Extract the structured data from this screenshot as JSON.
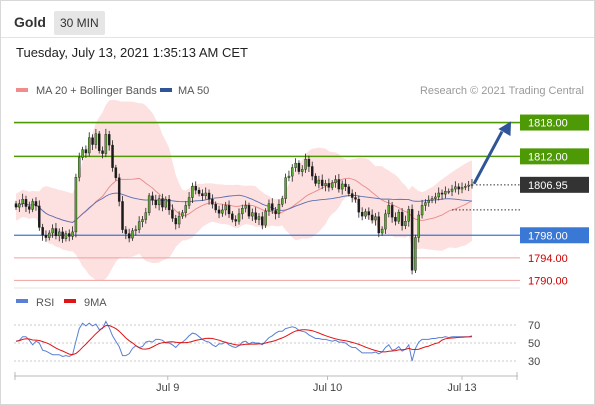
{
  "header": {
    "title": "Gold",
    "interval": "30 MIN",
    "datetime": "Tuesday, July 13, 2021 1:35:13 AM CET"
  },
  "chart_data": [
    {
      "type": "candlestick",
      "instrument": "Gold",
      "interval": "30 MIN",
      "credit": "Research © 2021 Trading Central",
      "legend": [
        {
          "name": "MA 20 + Bollinger Bands",
          "color": "#f28b8b"
        },
        {
          "name": "MA 50",
          "color": "#2f5597"
        }
      ],
      "x_ticks": [
        "Jul 9",
        "Jul 10",
        "Jul 13"
      ],
      "ylim": [
        1789,
        1822
      ],
      "last_price": 1806.95,
      "levels": [
        {
          "value": 1818.0,
          "label": "1818.00",
          "kind": "resistance",
          "color": "#4e9a06"
        },
        {
          "value": 1812.0,
          "label": "1812.00",
          "kind": "resistance",
          "color": "#4e9a06"
        },
        {
          "value": 1798.0,
          "label": "1798.00",
          "kind": "pivot",
          "color": "#3a78d6"
        },
        {
          "value": 1794.0,
          "label": "1794.00",
          "kind": "support",
          "color": "#cc0000"
        },
        {
          "value": 1790.0,
          "label": "1790.00",
          "kind": "support",
          "color": "#cc0000"
        }
      ],
      "forecast_arrow": {
        "from": 1806.95,
        "to": 1818.0,
        "color": "#2f5597"
      },
      "closes": [
        1803.0,
        1803.6,
        1804.4,
        1803.1,
        1802.6,
        1804.0,
        1803.2,
        1799.4,
        1798.0,
        1797.6,
        1798.4,
        1799.2,
        1797.9,
        1798.6,
        1797.4,
        1798.3,
        1797.8,
        1798.6,
        1808.3,
        1811.8,
        1813.2,
        1812.6,
        1815.3,
        1814.1,
        1816.0,
        1813.0,
        1812.5,
        1815.9,
        1814.0,
        1810.0,
        1808.2,
        1804.0,
        1799.0,
        1798.3,
        1797.5,
        1798.8,
        1799.0,
        1800.4,
        1800.8,
        1802.0,
        1805.0,
        1804.2,
        1803.4,
        1804.5,
        1803.0,
        1804.4,
        1802.5,
        1801.0,
        1800.0,
        1801.4,
        1802.0,
        1803.3,
        1804.7,
        1806.7,
        1806.0,
        1805.4,
        1805.0,
        1805.5,
        1804.4,
        1803.5,
        1802.5,
        1801.9,
        1802.5,
        1803.3,
        1801.8,
        1800.8,
        1800.5,
        1801.8,
        1802.8,
        1803.3,
        1801.4,
        1802.0,
        1800.8,
        1801.3,
        1799.8,
        1802.3,
        1803.6,
        1802.4,
        1801.8,
        1803.5,
        1804.5,
        1808.2,
        1808.5,
        1810.0,
        1810.8,
        1809.3,
        1809.7,
        1811.5,
        1810.2,
        1808.5,
        1807.2,
        1807.8,
        1806.8,
        1807.2,
        1806.5,
        1807.3,
        1807.9,
        1806.2,
        1807.1,
        1806.6,
        1805.4,
        1804.7,
        1804.4,
        1802.1,
        1801.4,
        1802.2,
        1801.6,
        1800.7,
        1801.3,
        1798.4,
        1799.1,
        1801.8,
        1803.3,
        1801.2,
        1800.5,
        1802.1,
        1799.7,
        1800.5,
        1802.6,
        1791.8,
        1797.6,
        1801.6,
        1803.3,
        1803.8,
        1804.2,
        1804.5,
        1804.8,
        1805.5,
        1805.3,
        1805.8,
        1805.8,
        1806.2,
        1806.6,
        1806.2,
        1806.5,
        1806.7,
        1806.9,
        1807.0
      ],
      "rsi_ticks": [
        70,
        50,
        30
      ],
      "rsi": [
        52,
        53,
        57,
        57,
        53,
        48,
        52,
        50,
        42,
        41,
        39,
        37,
        37,
        37,
        35,
        36,
        35,
        37,
        52,
        66,
        72,
        69,
        72,
        69,
        71,
        65,
        66,
        74,
        67,
        58,
        52,
        46,
        36,
        36,
        38,
        44,
        47,
        45,
        46,
        51,
        52,
        51,
        54,
        54,
        53,
        50,
        50,
        48,
        45,
        49,
        51,
        54,
        58,
        61,
        60,
        57,
        54,
        52,
        51,
        48,
        46,
        49,
        49,
        51,
        48,
        46,
        45,
        47,
        51,
        52,
        49,
        51,
        50,
        50,
        48,
        52,
        56,
        58,
        61,
        63,
        63,
        66,
        67,
        68,
        67,
        64,
        63,
        62,
        59,
        57,
        55,
        55,
        54,
        54,
        53,
        52,
        53,
        51,
        51,
        50,
        47,
        45,
        45,
        42,
        39,
        39,
        39,
        39,
        40,
        38,
        40,
        45,
        48,
        42,
        43,
        46,
        41,
        43,
        48,
        30,
        44,
        51,
        54,
        54,
        54,
        55,
        55,
        56,
        56,
        57,
        56,
        57,
        57,
        57,
        57,
        57,
        57,
        58
      ],
      "rsi_series": [
        {
          "name": "RSI",
          "color": "#5a7fd4"
        },
        {
          "name": "9MA",
          "color": "#e01414"
        }
      ]
    }
  ]
}
